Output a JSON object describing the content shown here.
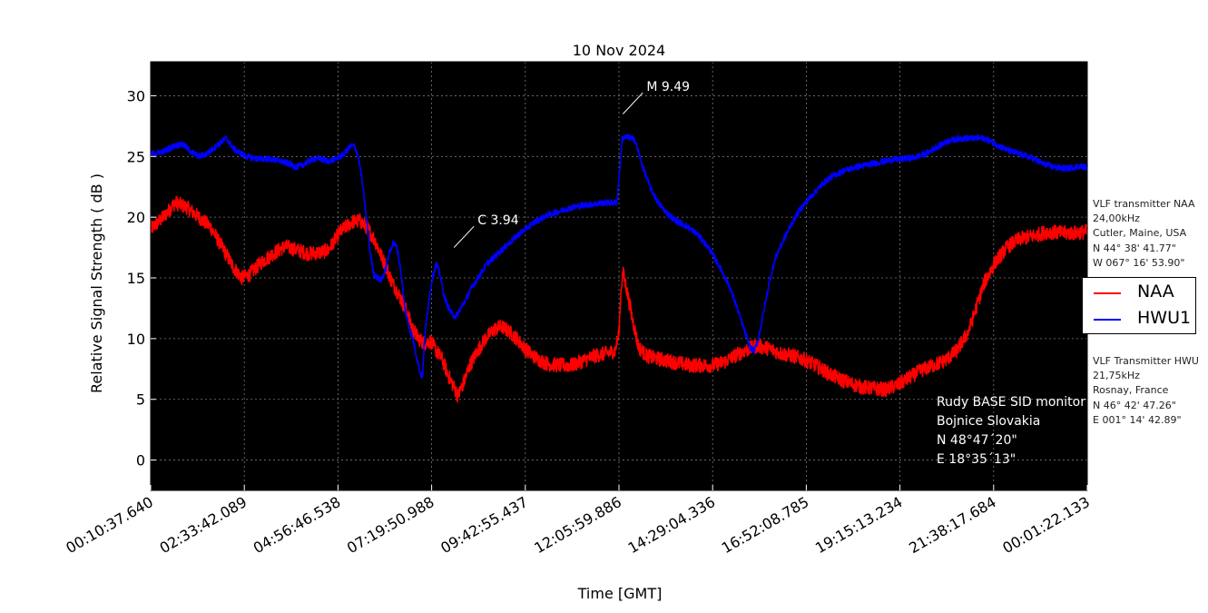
{
  "chart_data": {
    "type": "line",
    "title": "10 Nov 2024",
    "xlabel": "Time [GMT]",
    "ylabel": "Relative Signal Strength ( dB )",
    "ylim": [
      -2.5,
      32.8
    ],
    "xlim_hours": [
      0.177,
      24.023
    ],
    "y_ticks": [
      0,
      5,
      10,
      15,
      20,
      25,
      30
    ],
    "x_tick_labels": [
      "00:10:37.640",
      "02:33:42.089",
      "04:56:46.538",
      "07:19:50.988",
      "09:42:55.437",
      "12:05:59.886",
      "14:29:04.336",
      "16:52:08.785",
      "19:15:13.234",
      "21:38:17.684",
      "00:01:22.133"
    ],
    "grid": true,
    "background": "#000000",
    "legend_position": "right",
    "series": [
      {
        "name": "NAA",
        "color": "#ff0000",
        "noise_db": 0.6,
        "points": [
          [
            0.18,
            19.0
          ],
          [
            0.5,
            20.0
          ],
          [
            0.8,
            21.2
          ],
          [
            1.1,
            20.8
          ],
          [
            1.4,
            20.0
          ],
          [
            1.7,
            19.2
          ],
          [
            2.0,
            17.5
          ],
          [
            2.3,
            15.8
          ],
          [
            2.5,
            15.0
          ],
          [
            2.7,
            15.3
          ],
          [
            3.0,
            16.3
          ],
          [
            3.3,
            17.0
          ],
          [
            3.6,
            17.6
          ],
          [
            3.9,
            17.3
          ],
          [
            4.2,
            17.0
          ],
          [
            4.5,
            17.1
          ],
          [
            4.7,
            17.3
          ],
          [
            5.0,
            18.8
          ],
          [
            5.3,
            19.6
          ],
          [
            5.5,
            19.7
          ],
          [
            5.7,
            19.1
          ],
          [
            5.9,
            18.0
          ],
          [
            6.05,
            16.8
          ],
          [
            6.2,
            15.7
          ],
          [
            6.3,
            14.8
          ],
          [
            6.5,
            13.6
          ],
          [
            6.7,
            12.2
          ],
          [
            6.85,
            10.8
          ],
          [
            7.0,
            10.0
          ],
          [
            7.15,
            9.6
          ],
          [
            7.3,
            9.8
          ],
          [
            7.45,
            9.0
          ],
          [
            7.6,
            8.3
          ],
          [
            7.75,
            7.0
          ],
          [
            7.9,
            6.0
          ],
          [
            8.0,
            5.3
          ],
          [
            8.15,
            6.4
          ],
          [
            8.3,
            7.8
          ],
          [
            8.5,
            9.0
          ],
          [
            8.7,
            10.0
          ],
          [
            8.9,
            10.7
          ],
          [
            9.1,
            11.0
          ],
          [
            9.3,
            10.6
          ],
          [
            9.5,
            10.0
          ],
          [
            9.7,
            9.2
          ],
          [
            9.9,
            8.6
          ],
          [
            10.1,
            8.2
          ],
          [
            10.3,
            7.9
          ],
          [
            10.6,
            7.8
          ],
          [
            10.9,
            7.8
          ],
          [
            11.2,
            8.2
          ],
          [
            11.5,
            8.6
          ],
          [
            11.8,
            8.8
          ],
          [
            12.0,
            9.0
          ],
          [
            12.1,
            10.5
          ],
          [
            12.15,
            14.0
          ],
          [
            12.2,
            15.5
          ],
          [
            12.3,
            14.0
          ],
          [
            12.45,
            11.5
          ],
          [
            12.6,
            9.3
          ],
          [
            12.8,
            8.6
          ],
          [
            13.0,
            8.4
          ],
          [
            13.3,
            8.2
          ],
          [
            13.6,
            8.0
          ],
          [
            13.9,
            7.8
          ],
          [
            14.2,
            7.8
          ],
          [
            14.5,
            7.8
          ],
          [
            14.8,
            8.1
          ],
          [
            15.0,
            8.5
          ],
          [
            15.3,
            9.0
          ],
          [
            15.6,
            9.4
          ],
          [
            15.9,
            9.2
          ],
          [
            16.2,
            8.8
          ],
          [
            16.5,
            8.6
          ],
          [
            16.8,
            8.3
          ],
          [
            17.1,
            7.8
          ],
          [
            17.4,
            7.2
          ],
          [
            17.7,
            6.7
          ],
          [
            18.0,
            6.3
          ],
          [
            18.3,
            6.0
          ],
          [
            18.6,
            5.9
          ],
          [
            18.9,
            5.8
          ],
          [
            19.2,
            6.2
          ],
          [
            19.5,
            6.8
          ],
          [
            19.8,
            7.4
          ],
          [
            20.1,
            7.8
          ],
          [
            20.4,
            8.2
          ],
          [
            20.7,
            9.0
          ],
          [
            21.0,
            10.6
          ],
          [
            21.2,
            12.6
          ],
          [
            21.4,
            14.6
          ],
          [
            21.7,
            16.4
          ],
          [
            22.0,
            17.6
          ],
          [
            22.3,
            18.2
          ],
          [
            22.7,
            18.5
          ],
          [
            23.0,
            18.8
          ],
          [
            23.4,
            18.7
          ],
          [
            23.7,
            18.7
          ],
          [
            24.02,
            18.8
          ]
        ]
      },
      {
        "name": "HWU1",
        "color": "#0000ff",
        "noise_db": 0.25,
        "points": [
          [
            0.18,
            25.2
          ],
          [
            0.5,
            25.4
          ],
          [
            0.8,
            25.9
          ],
          [
            1.0,
            26.0
          ],
          [
            1.2,
            25.4
          ],
          [
            1.4,
            25.0
          ],
          [
            1.6,
            25.2
          ],
          [
            1.9,
            26.0
          ],
          [
            2.1,
            26.5
          ],
          [
            2.3,
            25.6
          ],
          [
            2.6,
            25.0
          ],
          [
            2.9,
            24.8
          ],
          [
            3.2,
            24.8
          ],
          [
            3.5,
            24.6
          ],
          [
            3.7,
            24.4
          ],
          [
            3.9,
            24.1
          ],
          [
            4.1,
            24.4
          ],
          [
            4.3,
            24.8
          ],
          [
            4.5,
            24.8
          ],
          [
            4.7,
            24.6
          ],
          [
            4.9,
            24.8
          ],
          [
            5.1,
            25.2
          ],
          [
            5.25,
            25.8
          ],
          [
            5.35,
            25.9
          ],
          [
            5.45,
            25.2
          ],
          [
            5.55,
            23.3
          ],
          [
            5.65,
            20.5
          ],
          [
            5.75,
            17.5
          ],
          [
            5.85,
            15.4
          ],
          [
            5.95,
            15.0
          ],
          [
            6.05,
            14.8
          ],
          [
            6.15,
            15.6
          ],
          [
            6.25,
            17.0
          ],
          [
            6.35,
            17.9
          ],
          [
            6.45,
            17.5
          ],
          [
            6.55,
            15.5
          ],
          [
            6.65,
            12.5
          ],
          [
            6.75,
            11.0
          ],
          [
            6.85,
            10.0
          ],
          [
            6.95,
            8.5
          ],
          [
            7.05,
            7.0
          ],
          [
            7.1,
            7.0
          ],
          [
            7.15,
            10.0
          ],
          [
            7.25,
            13.0
          ],
          [
            7.35,
            15.0
          ],
          [
            7.45,
            16.2
          ],
          [
            7.55,
            15.2
          ],
          [
            7.65,
            13.5
          ],
          [
            7.75,
            12.6
          ],
          [
            7.85,
            12.0
          ],
          [
            7.95,
            11.8
          ],
          [
            8.05,
            12.4
          ],
          [
            8.2,
            13.2
          ],
          [
            8.35,
            14.2
          ],
          [
            8.55,
            15.2
          ],
          [
            8.75,
            16.2
          ],
          [
            8.95,
            16.8
          ],
          [
            9.15,
            17.4
          ],
          [
            9.35,
            18.0
          ],
          [
            9.55,
            18.6
          ],
          [
            9.75,
            19.1
          ],
          [
            10.0,
            19.7
          ],
          [
            10.3,
            20.2
          ],
          [
            10.6,
            20.5
          ],
          [
            10.9,
            20.8
          ],
          [
            11.2,
            21.0
          ],
          [
            11.5,
            21.1
          ],
          [
            11.8,
            21.2
          ],
          [
            12.05,
            21.2
          ],
          [
            12.12,
            24.0
          ],
          [
            12.18,
            26.5
          ],
          [
            12.3,
            26.6
          ],
          [
            12.5,
            26.4
          ],
          [
            12.7,
            24.2
          ],
          [
            12.9,
            22.4
          ],
          [
            13.1,
            21.2
          ],
          [
            13.3,
            20.4
          ],
          [
            13.5,
            19.8
          ],
          [
            13.8,
            19.3
          ],
          [
            14.1,
            18.6
          ],
          [
            14.4,
            17.4
          ],
          [
            14.7,
            15.7
          ],
          [
            14.9,
            14.4
          ],
          [
            15.1,
            12.6
          ],
          [
            15.3,
            10.6
          ],
          [
            15.45,
            9.2
          ],
          [
            15.55,
            9.0
          ],
          [
            15.65,
            10.0
          ],
          [
            15.8,
            12.5
          ],
          [
            15.95,
            15.0
          ],
          [
            16.1,
            16.8
          ],
          [
            16.3,
            18.2
          ],
          [
            16.5,
            19.5
          ],
          [
            16.7,
            20.6
          ],
          [
            16.9,
            21.4
          ],
          [
            17.1,
            22.1
          ],
          [
            17.3,
            22.8
          ],
          [
            17.5,
            23.3
          ],
          [
            17.8,
            23.8
          ],
          [
            18.1,
            24.1
          ],
          [
            18.4,
            24.3
          ],
          [
            18.7,
            24.5
          ],
          [
            19.0,
            24.7
          ],
          [
            19.3,
            24.8
          ],
          [
            19.6,
            24.9
          ],
          [
            19.9,
            25.2
          ],
          [
            20.2,
            25.8
          ],
          [
            20.5,
            26.3
          ],
          [
            20.8,
            26.5
          ],
          [
            21.1,
            26.5
          ],
          [
            21.4,
            26.5
          ],
          [
            21.7,
            26.0
          ],
          [
            22.0,
            25.5
          ],
          [
            22.3,
            25.2
          ],
          [
            22.6,
            24.9
          ],
          [
            22.9,
            24.4
          ],
          [
            23.2,
            24.1
          ],
          [
            23.5,
            24.0
          ],
          [
            23.8,
            24.2
          ],
          [
            24.02,
            24.1
          ]
        ]
      }
    ],
    "annotations": [
      {
        "text": "C 3.94",
        "x": 7.9,
        "y": 17.5,
        "text_y": 19.4
      },
      {
        "text": "M 9.49",
        "x": 12.2,
        "y": 28.5,
        "text_y": 30.4
      }
    ]
  },
  "monitor_info": {
    "lines": [
      "Rudy BASE SID monitor",
      "Bojnice Slovakia",
      "N 48°47´20\"",
      "E 18°35´13\""
    ]
  },
  "transmitter_naa": {
    "lines": [
      "VLF transmitter  NAA",
      "24,00kHz",
      "Cutler, Maine, USA",
      "N 44° 38' 41.77\"",
      "W 067° 16' 53.90\""
    ]
  },
  "transmitter_hwu": {
    "lines": [
      "VLF Transmitter HWU",
      "21,75kHz",
      "Rosnay, France",
      "N 46° 42' 47.26\"",
      "E 001° 14' 42.89\""
    ]
  },
  "legend": {
    "items": [
      {
        "label": "NAA",
        "color": "#ff0000"
      },
      {
        "label": "HWU1",
        "color": "#0000ff"
      }
    ]
  }
}
